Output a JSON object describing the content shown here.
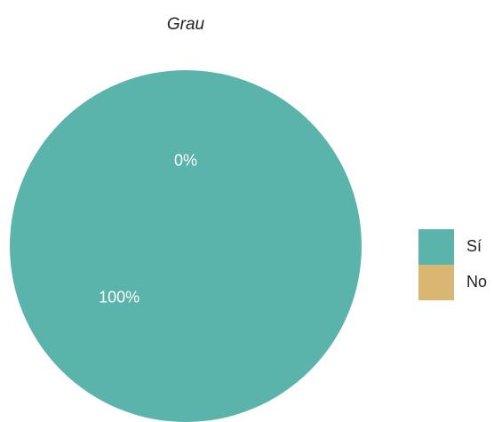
{
  "chart_data": {
    "type": "pie",
    "title": "Grau",
    "categories": [
      "Sí",
      "No"
    ],
    "values": [
      100,
      0
    ],
    "value_labels": [
      "100%",
      "0%"
    ],
    "colors": [
      "#5ab4ab",
      "#d9b671"
    ]
  }
}
